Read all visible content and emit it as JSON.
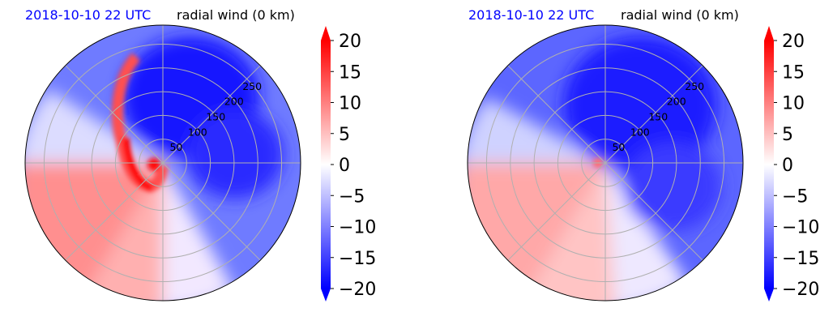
{
  "chart_data": [
    {
      "type": "heatmap",
      "projection": "polar",
      "date_label": "2018-10-10 22 UTC",
      "title": "radial wind (0 km)",
      "radial_ticks": [
        "50",
        "100",
        "150",
        "200",
        "250"
      ],
      "radial_values": [
        50,
        100,
        150,
        200,
        250
      ],
      "rmax": 290,
      "colormap": "bwr",
      "colorbar": {
        "min": -20,
        "max": 20,
        "ticks": [
          "20",
          "15",
          "10",
          "5",
          "0",
          "−5",
          "−10",
          "−15",
          "−20"
        ],
        "extend": "both"
      },
      "field": {
        "base": -8,
        "features": [
          {
            "kind": "positive_sector",
            "from_deg": 150,
            "to_deg": 300,
            "value": 9
          },
          {
            "kind": "negative_core",
            "center_deg": 60,
            "value": -18
          },
          {
            "kind": "positive_band",
            "spiral": true,
            "value": 20
          }
        ]
      }
    },
    {
      "type": "heatmap",
      "projection": "polar",
      "date_label": "2018-10-10 22 UTC",
      "title": "radial wind (0 km)",
      "radial_ticks": [
        "50",
        "100",
        "150",
        "200",
        "250"
      ],
      "radial_values": [
        50,
        100,
        150,
        200,
        250
      ],
      "rmax": 290,
      "colormap": "bwr",
      "colorbar": {
        "min": -20,
        "max": 20,
        "ticks": [
          "20",
          "15",
          "10",
          "5",
          "0",
          "−5",
          "−10",
          "−15",
          "−20"
        ],
        "extend": "both"
      },
      "field": {
        "base": -10,
        "features": [
          {
            "kind": "positive_sector",
            "from_deg": 170,
            "to_deg": 300,
            "value": 8
          },
          {
            "kind": "negative_core",
            "center_deg": 60,
            "value": -17
          }
        ]
      }
    }
  ]
}
